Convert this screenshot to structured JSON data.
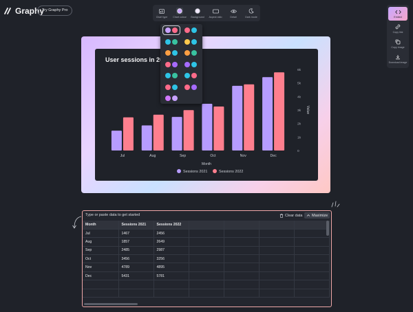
{
  "app": {
    "name": "Graphy",
    "pro_button": "Try Graphy Pro"
  },
  "toolbar": {
    "items": [
      {
        "label": "Chart type",
        "icon": "chart-type-icon"
      },
      {
        "label": "Chart colour",
        "icon": "palette-icon"
      },
      {
        "label": "Background",
        "icon": "background-icon"
      },
      {
        "label": "Aspect ratio",
        "icon": "aspect-ratio-icon"
      },
      {
        "label": "Detail",
        "icon": "eye-icon"
      },
      {
        "label": "Dark mode",
        "icon": "moon-icon"
      }
    ]
  },
  "rightbar": {
    "items": [
      {
        "label": "Embed",
        "icon": "code-icon"
      },
      {
        "label": "Copy link",
        "icon": "link-icon"
      },
      {
        "label": "Copy image",
        "icon": "copy-icon"
      },
      {
        "label": "Download image",
        "icon": "download-icon"
      }
    ]
  },
  "palettes": [
    [
      "#c8a2ff",
      "#ff6b8a"
    ],
    [
      "#ff6b8a",
      "#2ec4e6"
    ],
    [
      "#2ec4e6",
      "#39c2a0"
    ],
    [
      "#ffc94d",
      "#2ec4e6"
    ],
    [
      "#ff9f43",
      "#2ec4e6"
    ],
    [
      "#ff9f43",
      "#39c2a0"
    ],
    [
      "#ff6b8a",
      "#a66bff"
    ],
    [
      "#a66bff",
      "#2ec4e6"
    ],
    [
      "#2ec4e6",
      "#39c2a0"
    ],
    [
      "#2ec4e6",
      "#ff6b8a"
    ],
    [
      "#ff6b8a",
      "#2ec4e6"
    ],
    [
      "#ff6b8a",
      "#a66bff"
    ],
    [
      "#d178ff",
      "#c8a2ff"
    ]
  ],
  "chart_data": {
    "type": "bar",
    "title": "User sessions in 2021",
    "categories": [
      "Jul",
      "Aug",
      "Sep",
      "Oct",
      "Nov",
      "Dec"
    ],
    "series": [
      {
        "name": "Sessions 2021",
        "values": [
          1467,
          1857,
          2485,
          3456,
          4789,
          5431
        ],
        "color": "#b79cff"
      },
      {
        "name": "Sessions 2022",
        "values": [
          2456,
          2649,
          2987,
          3256,
          4895,
          5781
        ],
        "color": "#ff7f8e"
      }
    ],
    "xlabel": "Month",
    "ylabel": "Value",
    "ylim": [
      0,
      6000
    ],
    "yticks": [
      "0",
      "1k",
      "2k",
      "3k",
      "4k",
      "5k",
      "6k"
    ],
    "legend": "bottom"
  },
  "data_panel": {
    "hint": "Type or paste data to get started",
    "clear_label": "Clear data",
    "maximize_label": "Maximize",
    "headers": [
      "Month",
      "Sessions 2021",
      "Sessions 2022"
    ],
    "rows": [
      [
        "Jul",
        "1467",
        "2456"
      ],
      [
        "Aug",
        "1857",
        "2649"
      ],
      [
        "Sep",
        "2485",
        "2987"
      ],
      [
        "Oct",
        "3456",
        "3256"
      ],
      [
        "Nov",
        "4789",
        "4895"
      ],
      [
        "Dec",
        "5431",
        "5781"
      ]
    ]
  }
}
